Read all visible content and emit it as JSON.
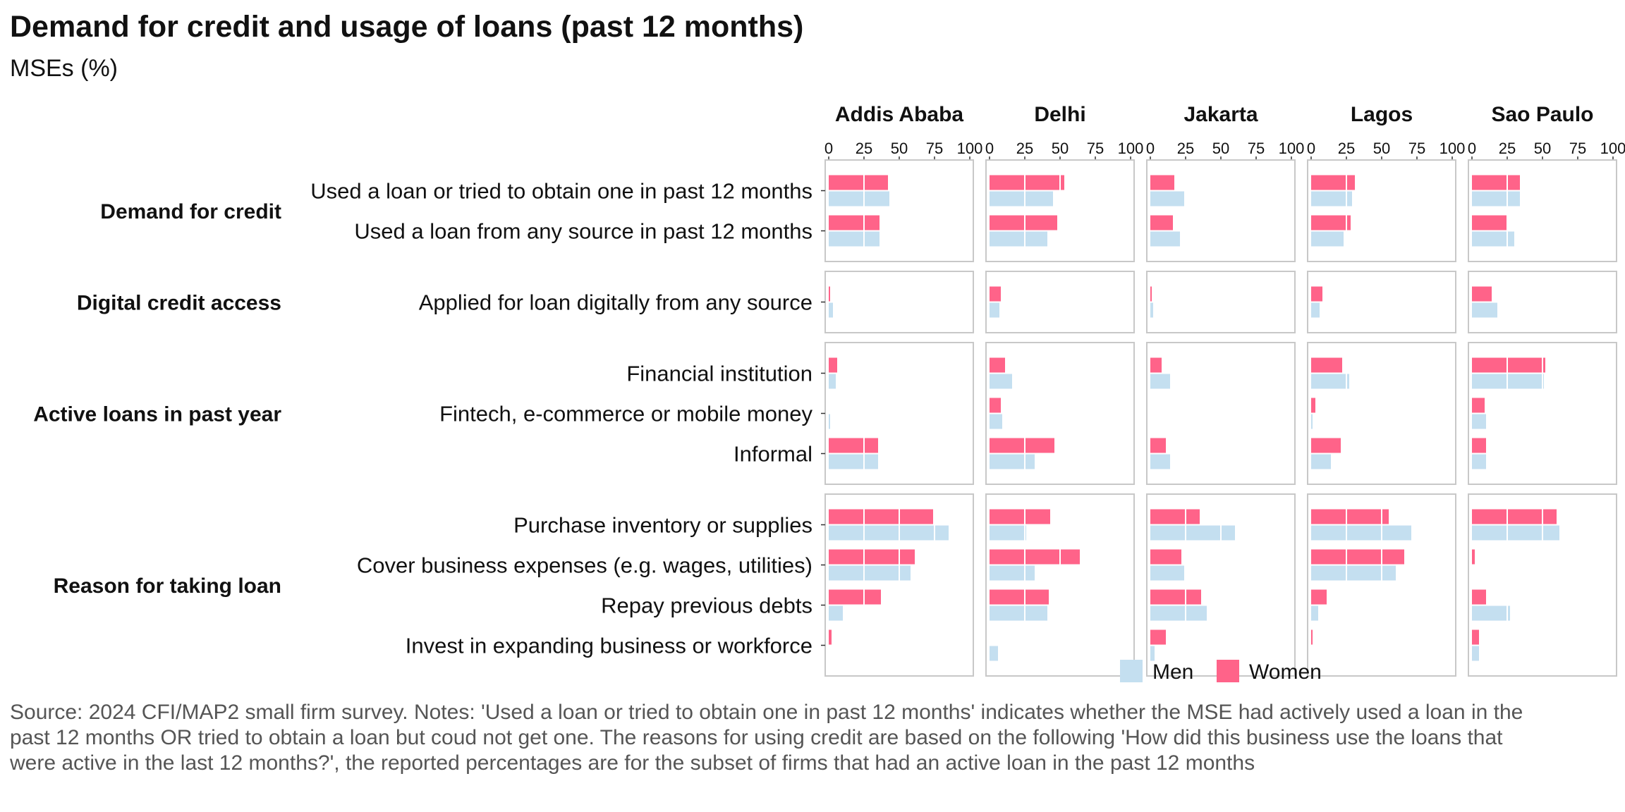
{
  "chart_data": {
    "type": "bar",
    "orientation": "horizontal",
    "title": "Demand for credit and usage of loans (past 12 months)",
    "subtitle": "MSEs (%)",
    "xlim": [
      0,
      100
    ],
    "x_ticks": [
      "0",
      "25",
      "50",
      "75",
      "100"
    ],
    "grid": true,
    "legend_position": "bottom-right",
    "legend": [
      {
        "key": "men",
        "label": "Men",
        "color": "#c4dff0"
      },
      {
        "key": "women",
        "label": "Women",
        "color": "#ff6389"
      }
    ],
    "cities": [
      "Addis Ababa",
      "Delhi",
      "Jakarta",
      "Lagos",
      "Sao Paulo"
    ],
    "groups": [
      {
        "label": "Demand for credit",
        "items": [
          {
            "label": "Used a loan or tried to obtain one in past 12 months",
            "women": [
              42,
              53,
              17,
              31,
              34
            ],
            "men": [
              43,
              45,
              24,
              29,
              34
            ]
          },
          {
            "label": "Used a loan from any source in past 12 months",
            "women": [
              36,
              48,
              16,
              28,
              25
            ],
            "men": [
              36,
              41,
              21,
              23,
              30
            ]
          }
        ]
      },
      {
        "label": "Digital credit access",
        "items": [
          {
            "label": "Applied for loan digitally from any source",
            "women": [
              1,
              8,
              1,
              8,
              14
            ],
            "men": [
              3,
              7,
              2,
              6,
              18
            ]
          }
        ]
      },
      {
        "label": "Active loans in past year",
        "items": [
          {
            "label": "Financial institution",
            "women": [
              6,
              11,
              8,
              22,
              52
            ],
            "men": [
              5,
              16,
              14,
              27,
              51
            ]
          },
          {
            "label": "Fintech, e-commerce or mobile money",
            "women": [
              0,
              8,
              0,
              3,
              9
            ],
            "men": [
              1,
              9,
              0,
              1,
              10
            ]
          },
          {
            "label": "Informal",
            "women": [
              35,
              46,
              11,
              21,
              10
            ],
            "men": [
              35,
              32,
              14,
              14,
              10
            ]
          }
        ]
      },
      {
        "label": "Reason for taking loan",
        "items": [
          {
            "label": "Purchase inventory or supplies",
            "women": [
              74,
              43,
              35,
              55,
              60
            ],
            "men": [
              85,
              26,
              60,
              71,
              62
            ]
          },
          {
            "label": "Cover business expenses (e.g. wages, utilities)",
            "women": [
              61,
              64,
              22,
              66,
              2
            ],
            "men": [
              58,
              32,
              24,
              60,
              0
            ]
          },
          {
            "label": "Repay previous debts",
            "women": [
              37,
              42,
              36,
              11,
              10
            ],
            "men": [
              10,
              41,
              40,
              5,
              27
            ]
          },
          {
            "label": "Invest in expanding business or workforce",
            "women": [
              2,
              0,
              11,
              1,
              5
            ],
            "men": [
              0,
              6,
              3,
              0,
              5
            ]
          }
        ]
      }
    ]
  },
  "source_note": "Source: 2024 CFI/MAP2 small firm survey. Notes: 'Used a loan or tried to obtain one in past 12 months' indicates whether the MSE had actively used a loan in the past 12 months OR tried to obtain a loan but coud not get one. The reasons for using credit are based on the following 'How did this business use the loans that were active in the last 12 months?', the reported percentages are for the subset of firms that had an active loan in the past 12 months"
}
